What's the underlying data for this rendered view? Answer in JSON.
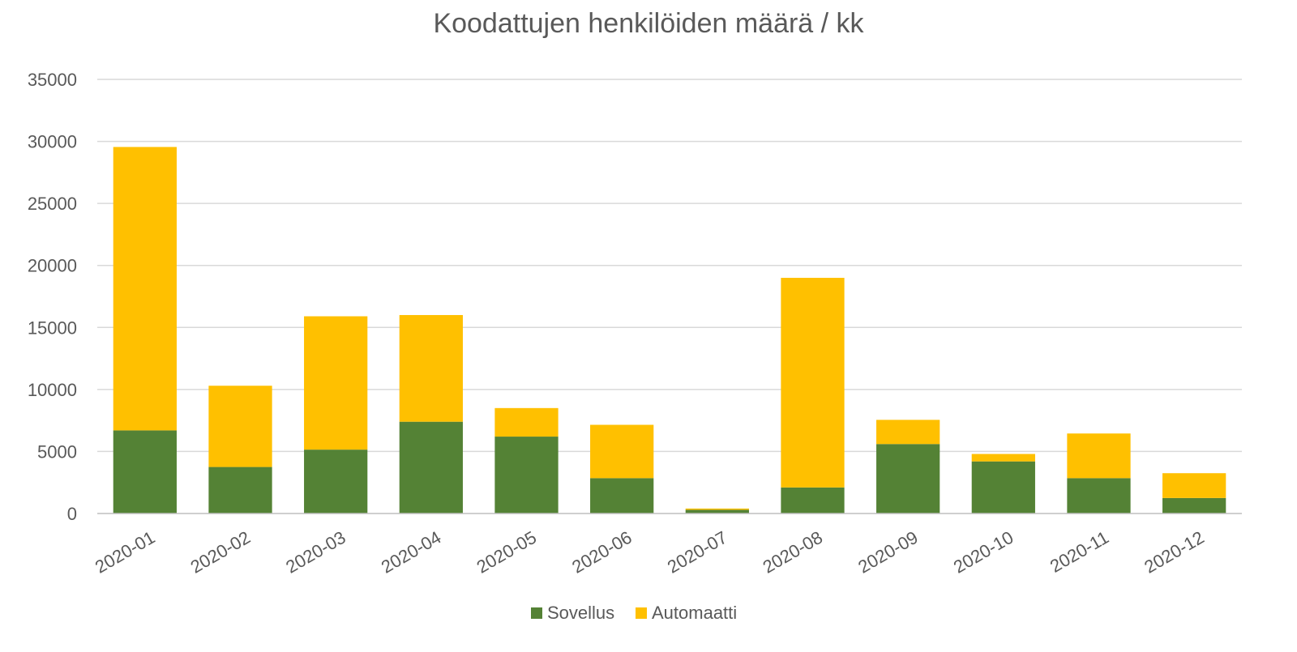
{
  "chart_data": {
    "type": "bar",
    "stacked": true,
    "title": "Koodattujen henkilöiden määrä / kk",
    "xlabel": "",
    "ylabel": "",
    "categories": [
      "2020-01",
      "2020-02",
      "2020-03",
      "2020-04",
      "2020-05",
      "2020-06",
      "2020-07",
      "2020-08",
      "2020-09",
      "2020-10",
      "2020-11",
      "2020-12"
    ],
    "series": [
      {
        "name": "Sovellus",
        "color": "#548235",
        "values": [
          6700,
          3750,
          5150,
          7400,
          6200,
          2850,
          300,
          2100,
          5600,
          4200,
          2850,
          1250
        ]
      },
      {
        "name": "Automaatti",
        "color": "#FFC000",
        "values": [
          22850,
          6550,
          10750,
          8600,
          2300,
          4300,
          100,
          16900,
          1950,
          600,
          3600,
          2000
        ]
      }
    ],
    "ylim": [
      0,
      35000
    ],
    "yticks": [
      "0",
      "5000",
      "10000",
      "15000",
      "20000",
      "25000",
      "30000",
      "35000"
    ],
    "grid": true,
    "legend_position": "bottom-center"
  }
}
